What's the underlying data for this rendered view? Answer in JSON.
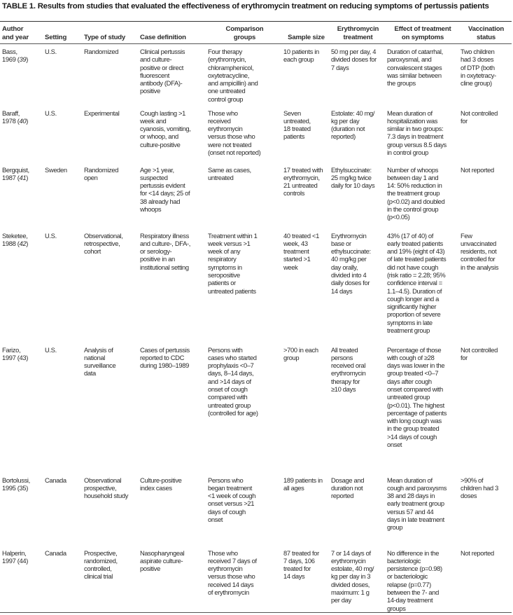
{
  "title": "TABLE 1. Results from studies that evaluated the effectiveness of erythromycin treatment on reducing symptoms of pertussis patients",
  "headers": [
    "Author\nand year",
    "Setting",
    "Type of study",
    "Case definition",
    "Comparison\ngroups",
    "Sample size",
    "Erythromycin\ntreatment",
    "Effect of treatment\non symptoms",
    "Vaccination\nstatus"
  ],
  "rows": [
    {
      "author": "Bass,",
      "year": "1969 (",
      "ref": "39",
      "ref_italic": true,
      "setting": "U.S.",
      "type": "Randomized",
      "case": "Clinical pertussis\nand culture-\npositive or direct\nfluorescent\nantibody (DFA)-\npositive",
      "comparison": "Four therapy\n(erythromycin,\nchloramphenicol,\noxytetracycline,\nand ampicillin) and\none untreated\ncontrol group",
      "sample": "10 patients in\neach group",
      "treatment": "50 mg per day, 4\ndivided doses for\n7 days",
      "effect": "Duration of catarrhal,\nparoxysmal, and\nconvalescent stages\nwas similar between\nthe groups",
      "vaccination": "Two children\nhad 3 doses\nof DTP (both\nin oxytetracy-\ncline group)"
    },
    {
      "author": "Baraff,",
      "year": "1978 (",
      "ref": "40",
      "ref_italic": true,
      "setting": "U.S.",
      "type": "Experimental",
      "case": "Cough lasting >1\nweek and\ncyanosis, vomiting,\nor whoop, and\nculture-positive",
      "comparison": "Those who\nreceived\nerythromycin\nversus those who\nwere not treated\n(onset not reported)",
      "sample": " Seven\n untreated,\n 18 treated\n patients",
      "treatment": "Estolate: 40 mg/\nkg per day\n(duration not\nreported)",
      "effect": "Mean duration of\nhospitalization was\nsimilar in two groups:\n7.3 days in treatment\ngroup versus 8.5 days\nin control group",
      "vaccination": "Not controlled\nfor"
    },
    {
      "author": "Bergquist,",
      "year": "1987 (",
      "ref": "41",
      "ref_italic": true,
      "setting": "Sweden",
      "type": " Randomized\n open",
      "case": "Age >1 year,\nsuspected\npertussis evident\nfor <14 days; 25 of\n38 already had\nwhoops",
      "comparison": "Same as cases,\nuntreated",
      "sample": "17 treated with\nerythromycin,\n21 untreated\ncontrols",
      "treatment": "Ethylsuccinate:\n25 mg/kg twice\ndaily for 10 days",
      "effect": "Number of whoops\nbetween day 1 and\n14: 50% reduction in\nthe treatment group\n(p<0.02) and doubled\nin the control group\n(p<0.05)",
      "vaccination": "Not reported"
    },
    {
      "author": "Steketee,",
      "year": "1988 (",
      "ref": "42",
      "ref_italic": true,
      "setting": "U.S.",
      "type": "Observational,\nretrospective,\ncohort",
      "case": "Respiratory illness\nand culture-, DFA-,\nor serology-\npositive in an\ninstitutional setting",
      "comparison": "Treatment within 1\nweek versus >1\nweek of any\nrespiratory\nsymptoms in\nseropositive\npatients or\nuntreated patients",
      "sample": "40 treated <1\nweek, 43\ntreatment\nstarted >1\nweek",
      "treatment": "Erythromycin\nbase or\nethylsuccinate:\n40 mg/kg per\nday orally,\ndivided into 4\ndaily doses for\n14 days",
      "effect": "43% (17 of 40) of\nearly treated patients\nand 19% (eight of 43)\nof late treated patients\ndid not have cough\n(risk ratio = 2.28; 95%\nconfidence interval =\n1.1–4.5). Duration of\ncough longer and a\nsignificantly higher\nproportion of severe\nsymptoms in late\ntreatment group",
      "vaccination": "Few\nunvaccinated\nresidents, not\ncontrolled for\nin the analysis"
    },
    {
      "author": "Farizo,",
      "year": "1997 (",
      "ref": "43",
      "ref_italic": false,
      "setting": "U.S.",
      "type": " Analysis of\n national\n surveillance\n data",
      "case": "Cases of pertussis\nreported to CDC\nduring 1980–1989",
      "comparison": "Persons with\ncases who started\nprophylaxis <0–7\ndays, 8–14 days,\nand >14 days of\nonset of cough\ncompared with\nuntreated group\n(controlled for age)",
      "sample": ">700 in each\ngroup",
      "treatment": "All treated\npersons\nreceived oral\nerythromycin\ntherapy for\n≥10 days",
      "effect": "Percentage of those\nwith cough of ≥28\ndays was lower in the\ngroup treated <0–7\ndays after cough\nonset compared with\nuntreated group\n(p<0.01). The highest\npercentage of patients\nwith long cough was\nin the group treated\n>14 days of cough\nonset",
      "vaccination": "Not controlled\nfor"
    },
    {
      "author": "Bortolussi,",
      "year": "1995 (",
      "ref": "35",
      "ref_italic": false,
      "setting": "Canada",
      "type": "Observational\nprospective,\nhousehold study",
      "case": "Culture-positive\nindex cases",
      "comparison": "Persons who\nbegan treatment\n<1 week of cough\nonset versus >21\ndays of cough\nonset",
      "sample": "189 patients in\nall ages",
      "treatment": "Dosage and\nduration not\nreported",
      "effect": "Mean duration of\ncough and paroxysms\n38 and 28 days in\nearly treatment group\nversus 57 and 44\ndays in late treatment\ngroup",
      "vaccination": ">90% of\nchildren had 3\ndoses"
    },
    {
      "author": "Halperin,",
      "year": "1997 (",
      "ref": "44",
      "ref_italic": false,
      "setting": "Canada",
      "type": "Prospective,\nrandomized,\ncontrolled,\nclinical trial",
      "case": "Nasopharyngeal\naspirate culture-\npositive",
      "comparison": "Those who\nreceived 7 days of\nerythromycin\nversus those who\nreceived 14 days\nof erythromycin",
      "sample": "87 treated for\n7 days, 106\ntreated for\n14 days",
      "treatment": "7 or 14 days of\nerythromycin\nestolate, 40 mg/\nkg per day in 3\ndivided doses,\nmaximum: 1 g\nper day",
      "effect": "No difference in the\nbacteriologic\npersistence (p=0.98)\nor bacteriologic\nrelapse (p=0.77)\nbetween the 7- and\n14-day treatment\ngroups",
      "vaccination": "Not reported"
    }
  ]
}
